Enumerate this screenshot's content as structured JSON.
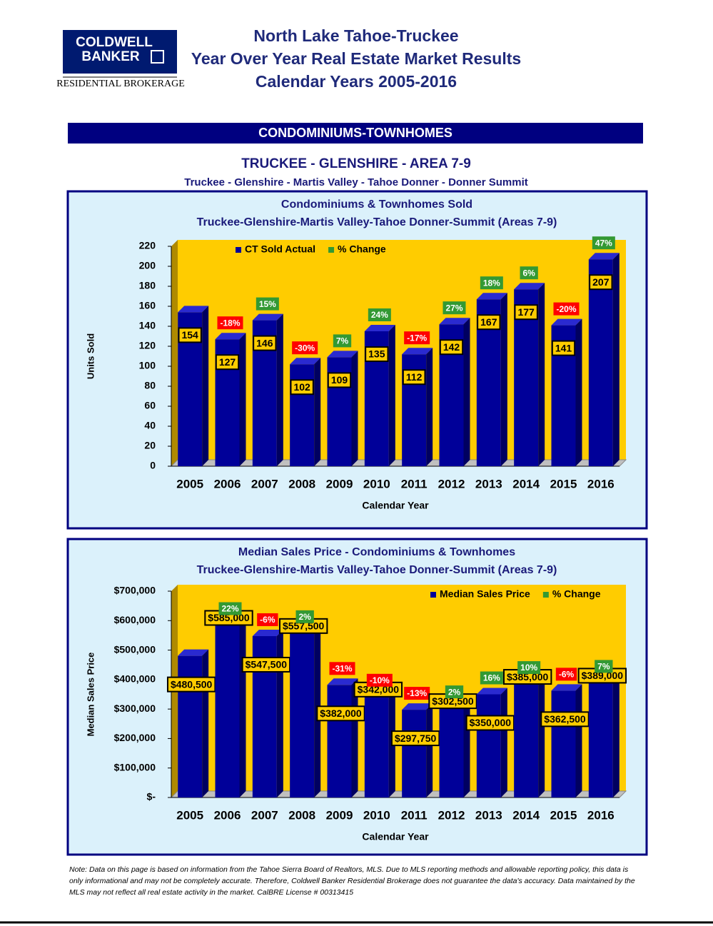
{
  "header": {
    "logo_line1": "COLDWELL",
    "logo_line2": "BANKER",
    "logo_sub": "RESIDENTIAL BROKERAGE",
    "title_lines": [
      "North Lake Tahoe-Truckee",
      "Year Over Year Real Estate Market Results",
      "Calendar Years 2005-2016"
    ]
  },
  "section": "CONDOMINIUMS-TOWNHOMES",
  "area_title": "TRUCKEE - GLENSHIRE - AREA 7-9",
  "area_subtitle": "Truckee - Glenshire - Martis Valley - Tahoe Donner - Donner Summit",
  "chart_data": [
    {
      "type": "bar",
      "title": "Condominiums & Townhomes Sold",
      "subtitle": "Truckee-Glenshire-Martis Valley-Tahoe Donner-Summit (Areas 7-9)",
      "y_label": "Units Sold",
      "x_label": "Calendar Year",
      "categories": [
        "2005",
        "2006",
        "2007",
        "2008",
        "2009",
        "2010",
        "2011",
        "2012",
        "2013",
        "2014",
        "2015",
        "2016"
      ],
      "series": [
        {
          "name": "CT Sold Actual",
          "color": "#000099",
          "values": [
            154,
            127,
            146,
            102,
            109,
            135,
            112,
            142,
            167,
            177,
            141,
            207
          ]
        }
      ],
      "change": {
        "name": "% Change",
        "color_up": "#339933",
        "color_down": "#ff0000",
        "values": [
          null,
          -18,
          15,
          -30,
          7,
          24,
          -17,
          27,
          18,
          6,
          -20,
          47
        ],
        "value_labels": [
          null,
          "-18%",
          "15%",
          "-30%",
          "7%",
          "24%",
          "-17%",
          "27%",
          "18%",
          "6%",
          "-20%",
          "47%"
        ]
      },
      "ylim": [
        0,
        220
      ],
      "yticks": [
        0,
        20,
        40,
        60,
        80,
        100,
        120,
        140,
        160,
        180,
        200,
        220
      ],
      "legend": "upper left"
    },
    {
      "type": "bar",
      "title": "Median Sales Price - Condominiums & Townhomes",
      "subtitle": "Truckee-Glenshire-Martis Valley-Tahoe Donner-Summit (Areas 7-9)",
      "y_label": "Median Sales Price",
      "x_label": "Calendar Year",
      "categories": [
        "2005",
        "2006",
        "2007",
        "2008",
        "2009",
        "2010",
        "2011",
        "2012",
        "2013",
        "2014",
        "2015",
        "2016"
      ],
      "series": [
        {
          "name": "Median Sales Price",
          "color": "#000099",
          "values": [
            480500,
            585000,
            547500,
            557500,
            382000,
            342000,
            297750,
            302500,
            350000,
            385000,
            362500,
            389000
          ],
          "value_labels": [
            "$480,500",
            "$585,000",
            "$547,500",
            "$557,500",
            "$382,000",
            "$342,000",
            "$297,750",
            "$302,500",
            "$350,000",
            "$385,000",
            "$362,500",
            "$389,000"
          ]
        }
      ],
      "change": {
        "name": "% Change",
        "color_up": "#339933",
        "color_down": "#ff0000",
        "values": [
          null,
          22,
          -6,
          2,
          -31,
          -10,
          -13,
          2,
          16,
          10,
          -6,
          7
        ],
        "value_labels": [
          null,
          "22%",
          "-6%",
          "2%",
          "-31%",
          "-10%",
          "-13%",
          "2%",
          "16%",
          "10%",
          "-6%",
          "7%"
        ]
      },
      "ylim": [
        0,
        700000
      ],
      "yticks": [
        {
          "value": 0,
          "label": "$-"
        },
        {
          "value": 100000,
          "label": "$100,000"
        },
        {
          "value": 200000,
          "label": "$200,000"
        },
        {
          "value": 300000,
          "label": "$300,000"
        },
        {
          "value": 400000,
          "label": "$400,000"
        },
        {
          "value": 500000,
          "label": "$500,000"
        },
        {
          "value": 600000,
          "label": "$600,000"
        },
        {
          "value": 700000,
          "label": "$700,000"
        }
      ],
      "legend": "upper right"
    }
  ],
  "note": "Note: Data on this page is based on information from the Tahoe Sierra Board of Realtors, MLS.  Due to MLS reporting methods and allowable reporting policy, this data is only informational and may not be completely accurate.  Therefore, Coldwell Banker Residential Brokerage does not guarantee the data's accuracy.  Data maintained by the MLS may not reflect all real estate activity in the market.  CalBRE License # 00313415"
}
